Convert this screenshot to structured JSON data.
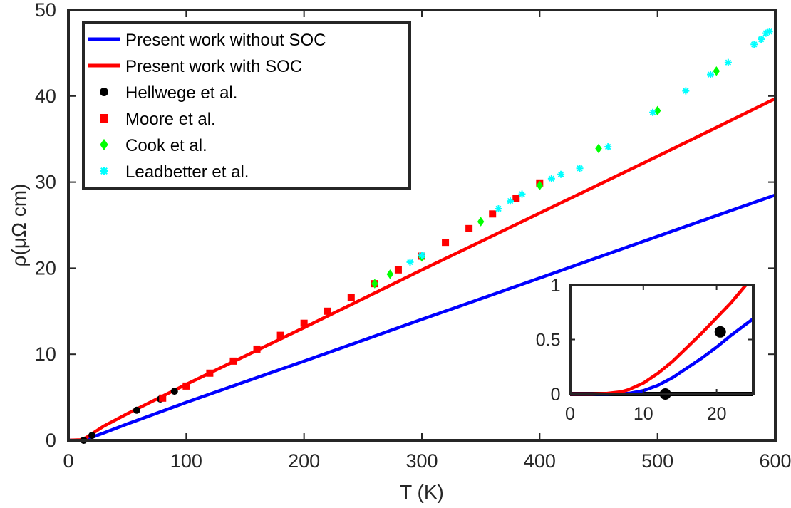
{
  "chart_data": [
    {
      "type": "line",
      "xlabel": "T (K)",
      "ylabel": "ρ(μΩ cm)",
      "xlim": [
        0,
        600
      ],
      "ylim": [
        0,
        50
      ],
      "xticks": [
        "0",
        "100",
        "200",
        "300",
        "400",
        "500",
        "600"
      ],
      "yticks": [
        "0",
        "10",
        "20",
        "30",
        "40",
        "50"
      ],
      "legend": "top-left",
      "series": [
        {
          "name": "Present work without SOC",
          "kind": "line",
          "color": "#0000ff",
          "x": [
            0,
            10,
            15,
            20,
            25,
            30,
            50,
            100,
            200,
            300,
            400,
            500,
            600
          ],
          "y": [
            0,
            0.02,
            0.12,
            0.35,
            0.6,
            0.85,
            1.9,
            4.4,
            9.2,
            14.05,
            18.85,
            23.7,
            28.5
          ]
        },
        {
          "name": "Present work with SOC",
          "kind": "line",
          "color": "#ff0000",
          "x": [
            0,
            10,
            15,
            20,
            25,
            30,
            50,
            100,
            200,
            300,
            400,
            500,
            600
          ],
          "y": [
            0,
            0.05,
            0.3,
            0.75,
            1.2,
            1.65,
            3.1,
            6.5,
            13.1,
            19.8,
            26.4,
            33.0,
            39.7
          ]
        },
        {
          "name": "Hellwege et al.",
          "kind": "scatter",
          "marker": "circle",
          "color": "#000000",
          "x": [
            13,
            20,
            58,
            78,
            90
          ],
          "y": [
            0.0,
            0.57,
            3.5,
            4.8,
            5.7
          ]
        },
        {
          "name": "Moore et al.",
          "kind": "scatter",
          "marker": "square",
          "color": "#ff0000",
          "x": [
            80,
            100,
            120,
            140,
            160,
            180,
            200,
            220,
            240,
            260,
            280,
            300,
            320,
            340,
            360,
            380,
            400
          ],
          "y": [
            4.9,
            6.3,
            7.8,
            9.2,
            10.6,
            12.2,
            13.6,
            15.0,
            16.6,
            18.2,
            19.8,
            21.4,
            23.0,
            24.6,
            26.3,
            28.1,
            29.9
          ]
        },
        {
          "name": "Cook et al.",
          "kind": "scatter",
          "marker": "diamond",
          "color": "#00ff00",
          "x": [
            260,
            273,
            300,
            350,
            400,
            450,
            500,
            550
          ],
          "y": [
            18.2,
            19.3,
            21.3,
            25.4,
            29.6,
            33.9,
            38.3,
            42.9
          ]
        },
        {
          "name": "Leadbetter et al.",
          "kind": "scatter",
          "marker": "asterisk",
          "color": "#00ffff",
          "x": [
            290,
            300,
            365,
            375,
            385,
            410,
            418,
            434,
            458,
            496,
            524,
            545,
            560,
            582,
            588,
            592,
            595
          ],
          "y": [
            20.7,
            21.5,
            26.9,
            27.8,
            28.6,
            30.4,
            30.9,
            31.6,
            34.1,
            38.1,
            40.6,
            42.5,
            43.9,
            46.0,
            46.6,
            47.3,
            47.5
          ]
        }
      ]
    },
    {
      "type": "line",
      "role": "inset",
      "xlim": [
        0,
        25
      ],
      "ylim": [
        0,
        1
      ],
      "xticks": [
        "0",
        "10",
        "20"
      ],
      "yticks": [
        "0",
        "0.5",
        "1"
      ],
      "series": [
        {
          "kind": "line",
          "color": "#0000ff",
          "x": [
            0,
            5,
            8,
            10,
            12,
            14,
            16,
            18,
            20,
            22,
            24,
            25
          ],
          "y": [
            0,
            0,
            0.005,
            0.03,
            0.08,
            0.15,
            0.24,
            0.33,
            0.43,
            0.54,
            0.64,
            0.69
          ]
        },
        {
          "kind": "line",
          "color": "#ff0000",
          "x": [
            0,
            3,
            5,
            7,
            8,
            10,
            12,
            14,
            16,
            18,
            20,
            22,
            24
          ],
          "y": [
            0,
            0,
            0.005,
            0.02,
            0.04,
            0.1,
            0.19,
            0.3,
            0.43,
            0.56,
            0.7,
            0.84,
            1.0
          ]
        },
        {
          "kind": "scatter",
          "marker": "circle",
          "color": "#000000",
          "x": [
            13,
            20.5
          ],
          "y": [
            0.0,
            0.57
          ]
        }
      ]
    }
  ]
}
